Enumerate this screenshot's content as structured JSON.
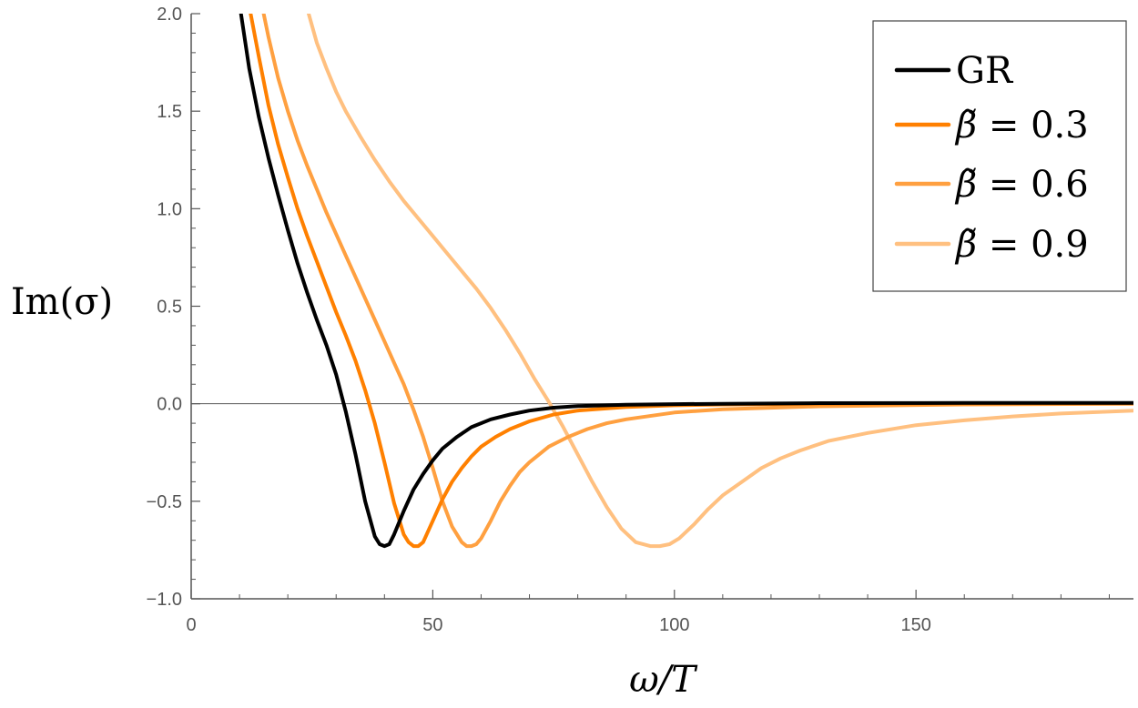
{
  "chart_data": {
    "type": "line",
    "xlabel": "ω/T",
    "ylabel": "Im(σ)",
    "xlim": [
      0,
      195
    ],
    "ylim": [
      -1.0,
      2.0
    ],
    "x_ticks": [
      0,
      50,
      100,
      150
    ],
    "x_tick_labels": [
      "0",
      "50",
      "100",
      "150"
    ],
    "y_ticks": [
      -1.0,
      -0.5,
      0.0,
      0.5,
      1.0,
      1.5,
      2.0
    ],
    "y_tick_labels": [
      "−1.0",
      "−0.5",
      "0.0",
      "0.5",
      "1.0",
      "1.5",
      "2.0"
    ],
    "grid": false,
    "legend_position": "top-right",
    "colors": {
      "GR": "#000000",
      "b03": "#ff8000",
      "b06": "#ffa040",
      "b09": "#ffc080",
      "axes": "#555555"
    },
    "series": [
      {
        "name": "GR",
        "legend": {
          "main": "GR",
          "value": ""
        },
        "x": [
          10.3,
          12,
          14,
          16,
          18,
          20,
          22,
          24,
          26,
          28,
          30,
          32,
          34,
          36,
          38,
          39,
          40,
          41,
          42,
          44,
          46,
          48,
          50,
          52,
          55,
          58,
          62,
          66,
          70,
          75,
          80,
          90,
          100,
          110,
          130,
          160,
          195
        ],
        "y": [
          2.0,
          1.72,
          1.47,
          1.26,
          1.07,
          0.89,
          0.72,
          0.57,
          0.43,
          0.3,
          0.15,
          -0.04,
          -0.26,
          -0.5,
          -0.68,
          -0.72,
          -0.73,
          -0.72,
          -0.67,
          -0.55,
          -0.44,
          -0.36,
          -0.29,
          -0.23,
          -0.17,
          -0.12,
          -0.08,
          -0.055,
          -0.035,
          -0.02,
          -0.012,
          -0.005,
          -0.002,
          0.0,
          0.003,
          0.004,
          0.004
        ]
      },
      {
        "name": "β̃ = 0.3",
        "legend": {
          "main": "β̃ = ",
          "value": "0.3"
        },
        "x": [
          12.3,
          14,
          16,
          18,
          20,
          22,
          24,
          26,
          28,
          30,
          32,
          34,
          36,
          38,
          40,
          42,
          44,
          45,
          46,
          47,
          48,
          50,
          52,
          54,
          56,
          58,
          60,
          63,
          66,
          70,
          75,
          80,
          90,
          100,
          110,
          130,
          160,
          195
        ],
        "y": [
          2.0,
          1.78,
          1.53,
          1.33,
          1.16,
          1.0,
          0.86,
          0.73,
          0.6,
          0.47,
          0.35,
          0.22,
          0.07,
          -0.1,
          -0.3,
          -0.51,
          -0.67,
          -0.71,
          -0.73,
          -0.73,
          -0.71,
          -0.6,
          -0.49,
          -0.4,
          -0.33,
          -0.27,
          -0.22,
          -0.17,
          -0.13,
          -0.09,
          -0.055,
          -0.035,
          -0.017,
          -0.008,
          -0.004,
          0.0,
          0.002,
          0.003
        ]
      },
      {
        "name": "β̃ = 0.6",
        "legend": {
          "main": "β̃ = ",
          "value": "0.6"
        },
        "x": [
          15,
          16,
          18,
          20,
          22,
          24,
          26,
          28,
          30,
          32,
          34,
          36,
          38,
          40,
          42,
          44,
          46,
          48,
          50,
          52,
          54,
          56,
          57,
          58,
          59,
          60,
          62,
          64,
          66,
          68,
          70,
          74,
          78,
          82,
          86,
          90,
          100,
          110,
          130,
          160,
          195
        ],
        "y": [
          2.0,
          1.88,
          1.67,
          1.5,
          1.35,
          1.22,
          1.1,
          0.98,
          0.87,
          0.76,
          0.65,
          0.54,
          0.43,
          0.32,
          0.21,
          0.1,
          -0.03,
          -0.17,
          -0.33,
          -0.5,
          -0.63,
          -0.71,
          -0.73,
          -0.73,
          -0.72,
          -0.69,
          -0.6,
          -0.5,
          -0.42,
          -0.35,
          -0.3,
          -0.22,
          -0.17,
          -0.13,
          -0.1,
          -0.08,
          -0.045,
          -0.028,
          -0.013,
          -0.004,
          0.0
        ]
      },
      {
        "name": "β̃ = 0.9",
        "legend": {
          "main": "β̃ = ",
          "value": "0.9"
        },
        "x": [
          24.3,
          26,
          28,
          30,
          32,
          35,
          38,
          41,
          44,
          47,
          50,
          53,
          56,
          59,
          62,
          65,
          68,
          71,
          74,
          77,
          80,
          83,
          86,
          89,
          92,
          95,
          97,
          99,
          101,
          104,
          107,
          110,
          114,
          118,
          122,
          126,
          132,
          140,
          150,
          160,
          170,
          180,
          195
        ],
        "y": [
          2.0,
          1.85,
          1.72,
          1.6,
          1.5,
          1.37,
          1.25,
          1.14,
          1.04,
          0.95,
          0.86,
          0.77,
          0.68,
          0.59,
          0.49,
          0.38,
          0.26,
          0.13,
          0.01,
          -0.12,
          -0.26,
          -0.4,
          -0.53,
          -0.64,
          -0.71,
          -0.73,
          -0.73,
          -0.72,
          -0.69,
          -0.62,
          -0.54,
          -0.47,
          -0.4,
          -0.33,
          -0.28,
          -0.24,
          -0.19,
          -0.15,
          -0.11,
          -0.085,
          -0.065,
          -0.05,
          -0.035
        ]
      }
    ]
  }
}
